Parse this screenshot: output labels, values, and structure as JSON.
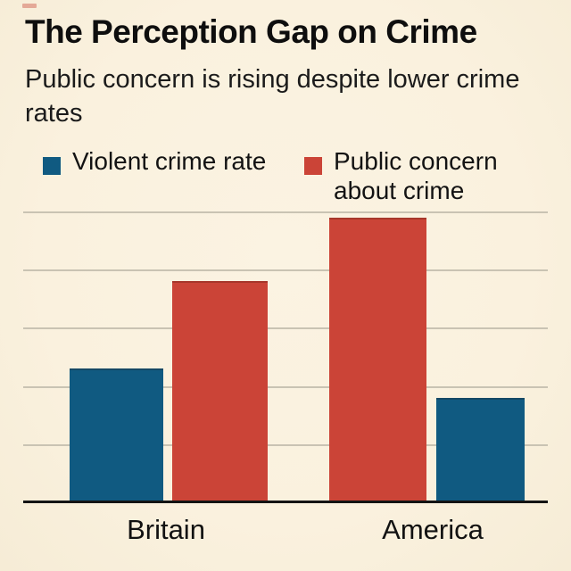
{
  "brand": {
    "dash_color": "#c63a2c"
  },
  "header": {
    "title": "The Perception Gap on Crime",
    "subtitle": "Public concern is rising despite lower crime rates"
  },
  "legend": [
    {
      "label": "Violent crime rate",
      "color": "#105a81"
    },
    {
      "label": "Public concern about crime",
      "color": "#cb4437"
    }
  ],
  "chart_data": {
    "type": "bar",
    "categories": [
      "Britain",
      "America"
    ],
    "series": [
      {
        "name": "Violent crime rate",
        "color": "#105a81",
        "values": [
          23,
          18
        ]
      },
      {
        "name": "Public concern about crime",
        "color": "#cb4437",
        "values": [
          38,
          49
        ]
      }
    ],
    "title": "The Perception Gap on Crime",
    "subtitle": "Public concern is rising despite lower crime rates",
    "xlabel": "",
    "ylabel": "",
    "ylim": [
      0,
      50
    ],
    "grid": true,
    "gridline_values": [
      10,
      20,
      30,
      40,
      50
    ],
    "value_axis_tick_labels_visible": false,
    "legend_position": "top"
  },
  "colors": {
    "background": "#faf1de",
    "gridline": "#c9c3b3",
    "axis_line": "#141414",
    "text": "#121212"
  }
}
